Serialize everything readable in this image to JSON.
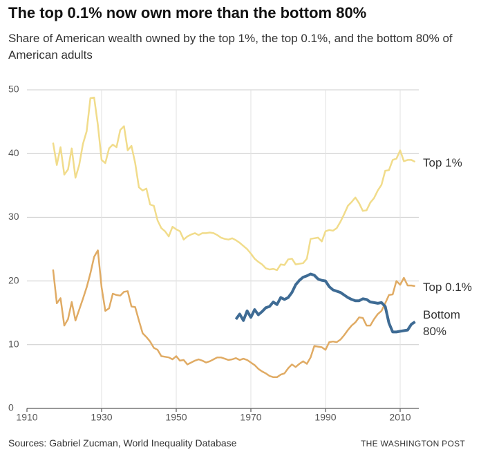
{
  "chart_data": {
    "type": "line",
    "title": "The top 0.1% now own more than the bottom 80%",
    "subtitle": "Share of American wealth owned by the top 1%, the top 0.1%, and the bottom 80% of American adults",
    "source": "Sources: Gabriel Zucman, World Inequality Database",
    "credit": "THE WASHINGTON POST",
    "x": [
      1917,
      1918,
      1919,
      1920,
      1921,
      1922,
      1923,
      1924,
      1925,
      1926,
      1927,
      1928,
      1929,
      1930,
      1931,
      1932,
      1933,
      1934,
      1935,
      1936,
      1937,
      1938,
      1939,
      1940,
      1941,
      1942,
      1943,
      1944,
      1945,
      1946,
      1947,
      1948,
      1949,
      1950,
      1951,
      1952,
      1953,
      1954,
      1955,
      1956,
      1957,
      1958,
      1959,
      1960,
      1961,
      1962,
      1963,
      1964,
      1965,
      1966,
      1967,
      1968,
      1969,
      1970,
      1971,
      1972,
      1973,
      1974,
      1975,
      1976,
      1977,
      1978,
      1979,
      1980,
      1981,
      1982,
      1983,
      1984,
      1985,
      1986,
      1987,
      1988,
      1989,
      1990,
      1991,
      1992,
      1993,
      1994,
      1995,
      1996,
      1997,
      1998,
      1999,
      2000,
      2001,
      2002,
      2003,
      2004,
      2005,
      2006,
      2007,
      2008,
      2009,
      2010,
      2011,
      2012,
      2013,
      2014
    ],
    "series": [
      {
        "name": "Top 1%",
        "color": "#f1dc8b",
        "values": [
          41.7,
          38.2,
          41,
          36.7,
          37.5,
          40.8,
          36.2,
          38.2,
          41.5,
          43.5,
          48.7,
          48.8,
          44.5,
          39,
          38.5,
          40.8,
          41.4,
          41,
          43.7,
          44.3,
          40.5,
          41.2,
          38.5,
          34.7,
          34.2,
          34.5,
          32,
          31.8,
          29.5,
          28.3,
          27.8,
          27,
          28.5,
          28.1,
          27.8,
          26.5,
          27,
          27.3,
          27.5,
          27.2,
          27.5,
          27.5,
          27.6,
          27.5,
          27.2,
          26.8,
          26.6,
          26.5,
          26.7,
          26.4,
          26,
          25.5,
          25,
          24.3,
          23.5,
          23,
          22.6,
          22,
          21.8,
          21.9,
          21.7,
          22.6,
          22.5,
          23.4,
          23.5,
          22.6,
          22.7,
          22.8,
          23.5,
          26.6,
          26.7,
          26.8,
          26.2,
          27.8,
          28,
          27.9,
          28.3,
          29.3,
          30.5,
          31.8,
          32.4,
          33.1,
          32.2,
          31,
          31.1,
          32.3,
          33,
          34.2,
          35.1,
          37.3,
          37.4,
          39,
          39.2,
          40.5,
          38.8,
          39,
          39,
          38.7
        ]
      },
      {
        "name": "Top 0.1%",
        "color": "#e0ab64",
        "values": [
          21.8,
          16.5,
          17.3,
          13,
          14,
          16.7,
          13.8,
          15.5,
          17.2,
          19,
          21.2,
          23.8,
          24.8,
          19,
          15.3,
          15.7,
          18,
          17.8,
          17.7,
          18.3,
          18.4,
          16,
          15.9,
          13.8,
          11.8,
          11.2,
          10.5,
          9.5,
          9.2,
          8.2,
          8.1,
          8,
          7.7,
          8.2,
          7.5,
          7.6,
          6.9,
          7.2,
          7.5,
          7.7,
          7.5,
          7.2,
          7.4,
          7.7,
          8,
          8,
          7.8,
          7.6,
          7.7,
          7.9,
          7.6,
          7.8,
          7.6,
          7.2,
          6.8,
          6.2,
          5.8,
          5.5,
          5.1,
          4.9,
          4.9,
          5.3,
          5.5,
          6.3,
          6.9,
          6.5,
          7,
          7.4,
          7,
          8,
          9.8,
          9.7,
          9.6,
          9.2,
          10.4,
          10.5,
          10.4,
          10.8,
          11.5,
          12.3,
          13,
          13.5,
          14.3,
          14.2,
          13,
          13,
          14,
          14.8,
          15.3,
          16.5,
          17.8,
          17.9,
          20,
          19.4,
          20.5,
          19.3,
          19.3,
          19.2
        ]
      },
      {
        "name": "Bottom 80%",
        "color": "#3e6b94",
        "values": [
          null,
          null,
          null,
          null,
          null,
          null,
          null,
          null,
          null,
          null,
          null,
          null,
          null,
          null,
          null,
          null,
          null,
          null,
          null,
          null,
          null,
          null,
          null,
          null,
          null,
          null,
          null,
          null,
          null,
          null,
          null,
          null,
          null,
          null,
          null,
          null,
          null,
          null,
          null,
          null,
          null,
          null,
          null,
          null,
          null,
          null,
          null,
          null,
          null,
          14,
          14.8,
          13.8,
          15.3,
          14.3,
          15.5,
          14.7,
          15.2,
          15.8,
          16,
          16.7,
          16.3,
          17.4,
          17.1,
          17.4,
          18.2,
          19.4,
          20.1,
          20.6,
          20.8,
          21.1,
          20.9,
          20.3,
          20.1,
          20,
          19.1,
          18.6,
          18.4,
          18.2,
          17.8,
          17.4,
          17.1,
          16.9,
          16.9,
          17.2,
          17.1,
          16.7,
          16.6,
          16.5,
          16.6,
          16,
          13.4,
          12,
          12,
          12.1,
          12.2,
          12.3,
          13.2,
          13.6
        ]
      }
    ],
    "xlim": [
      1910,
      2015
    ],
    "xticks": [
      1910,
      1930,
      1950,
      1970,
      1990,
      2010
    ],
    "ylim": [
      0,
      50
    ],
    "yticks": [
      0,
      10,
      20,
      30,
      40,
      50
    ],
    "grid": true
  }
}
